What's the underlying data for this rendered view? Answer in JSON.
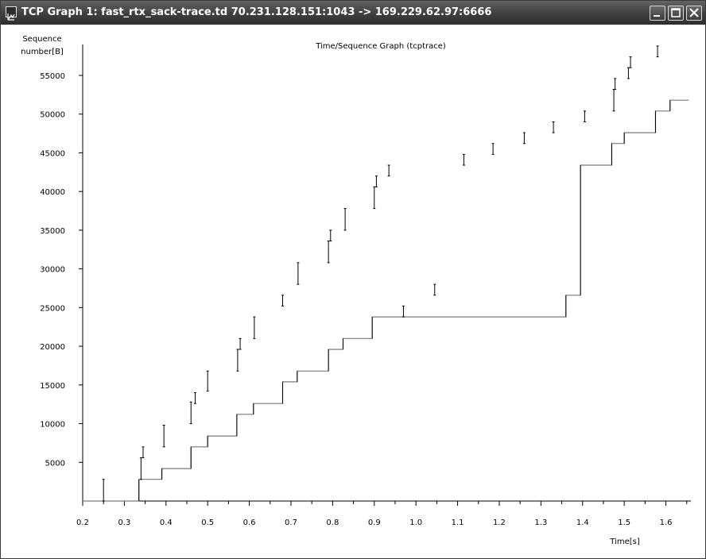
{
  "window": {
    "title": "TCP Graph 1: fast_rtx_sack-trace.td 70.231.128.151:1043 -> 169.229.62.97:6666",
    "buttons": [
      "minimize",
      "maximize",
      "close"
    ]
  },
  "chart_data": {
    "type": "scatter",
    "title": "Time/Sequence Graph (tcptrace)",
    "xlabel": "Time[s]",
    "ylabel_lines": [
      "Sequence",
      "number[B]"
    ],
    "xlim": [
      0.2,
      1.66
    ],
    "ylim": [
      0,
      59000
    ],
    "x_ticks": [
      0.2,
      0.3,
      0.4,
      0.5,
      0.6,
      0.7,
      0.8,
      0.9,
      1.0,
      1.1,
      1.2,
      1.3,
      1.4,
      1.5,
      1.6
    ],
    "x_tick_labels": [
      "0.2",
      "0.3",
      "0.4",
      "0.5",
      "0.6",
      "0.7",
      "0.8",
      "0.9",
      "1.0",
      "1.1",
      "1.2",
      "1.3",
      "1.4",
      "1.5",
      "1.6"
    ],
    "y_ticks": [
      5000,
      10000,
      15000,
      20000,
      25000,
      30000,
      35000,
      40000,
      45000,
      50000,
      55000
    ],
    "y_tick_labels": [
      "5000",
      "10000",
      "15000",
      "20000",
      "25000",
      "30000",
      "35000",
      "40000",
      "45000",
      "50000",
      "55000"
    ],
    "grid": false,
    "series": [
      {
        "kind": "segments",
        "color": "#000000",
        "points": [
          {
            "t": 0.25,
            "lo": 0,
            "hi": 2800
          },
          {
            "t": 0.34,
            "lo": 2800,
            "hi": 5600
          },
          {
            "t": 0.345,
            "lo": 5600,
            "hi": 7000
          },
          {
            "t": 0.395,
            "lo": 7000,
            "hi": 9800
          },
          {
            "t": 0.46,
            "lo": 10000,
            "hi": 12800
          },
          {
            "t": 0.47,
            "lo": 12600,
            "hi": 14000
          },
          {
            "t": 0.5,
            "lo": 14200,
            "hi": 16800
          },
          {
            "t": 0.572,
            "lo": 16800,
            "hi": 19600
          },
          {
            "t": 0.578,
            "lo": 19600,
            "hi": 21000
          },
          {
            "t": 0.612,
            "lo": 21000,
            "hi": 23800
          },
          {
            "t": 0.68,
            "lo": 25200,
            "hi": 26600
          },
          {
            "t": 0.717,
            "lo": 28000,
            "hi": 30800
          },
          {
            "t": 0.79,
            "lo": 30800,
            "hi": 33600
          },
          {
            "t": 0.795,
            "lo": 33600,
            "hi": 35000
          },
          {
            "t": 0.83,
            "lo": 35000,
            "hi": 37800
          },
          {
            "t": 0.9,
            "lo": 37800,
            "hi": 40600
          },
          {
            "t": 0.905,
            "lo": 40600,
            "hi": 42000
          },
          {
            "t": 0.935,
            "lo": 42000,
            "hi": 43400
          },
          {
            "t": 0.97,
            "lo": 23800,
            "hi": 25200
          },
          {
            "t": 1.045,
            "lo": 26600,
            "hi": 28000
          },
          {
            "t": 1.115,
            "lo": 43400,
            "hi": 44800
          },
          {
            "t": 1.185,
            "lo": 44800,
            "hi": 46200
          },
          {
            "t": 1.26,
            "lo": 46200,
            "hi": 47600
          },
          {
            "t": 1.33,
            "lo": 47600,
            "hi": 49000
          },
          {
            "t": 1.405,
            "lo": 49000,
            "hi": 50400
          },
          {
            "t": 1.475,
            "lo": 50400,
            "hi": 53200
          },
          {
            "t": 1.478,
            "lo": 53200,
            "hi": 54600
          },
          {
            "t": 1.51,
            "lo": 54600,
            "hi": 56000
          },
          {
            "t": 1.515,
            "lo": 56000,
            "hi": 57400
          },
          {
            "t": 1.58,
            "lo": 57400,
            "hi": 58800
          }
        ]
      },
      {
        "kind": "step",
        "color": "#7a7a7a",
        "accent_color": "#000000",
        "points": [
          [
            0.2,
            0
          ],
          [
            0.335,
            0
          ],
          [
            0.335,
            2800
          ],
          [
            0.39,
            2800
          ],
          [
            0.39,
            4200
          ],
          [
            0.46,
            4200
          ],
          [
            0.46,
            7000
          ],
          [
            0.5,
            7000
          ],
          [
            0.5,
            8400
          ],
          [
            0.57,
            8400
          ],
          [
            0.57,
            11200
          ],
          [
            0.61,
            11200
          ],
          [
            0.61,
            12600
          ],
          [
            0.68,
            12600
          ],
          [
            0.68,
            15400
          ],
          [
            0.715,
            15400
          ],
          [
            0.715,
            16800
          ],
          [
            0.79,
            16800
          ],
          [
            0.79,
            19600
          ],
          [
            0.825,
            19600
          ],
          [
            0.825,
            21000
          ],
          [
            0.895,
            21000
          ],
          [
            0.895,
            23800
          ],
          [
            1.36,
            23800
          ],
          [
            1.36,
            26600
          ],
          [
            1.395,
            26600
          ],
          [
            1.395,
            43400
          ],
          [
            1.47,
            43400
          ],
          [
            1.47,
            46200
          ],
          [
            1.5,
            46200
          ],
          [
            1.5,
            47600
          ],
          [
            1.575,
            47600
          ],
          [
            1.575,
            50400
          ],
          [
            1.61,
            50400
          ],
          [
            1.61,
            51800
          ],
          [
            1.655,
            51800
          ]
        ]
      }
    ]
  }
}
